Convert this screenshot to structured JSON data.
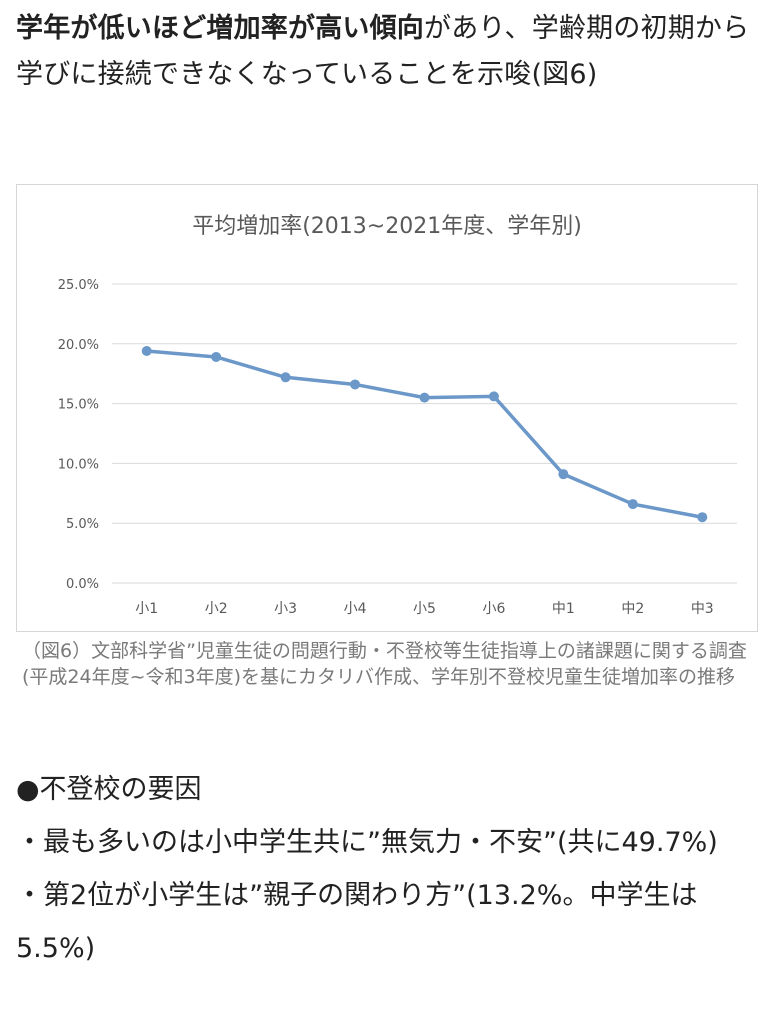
{
  "intro": {
    "bold": "学年が低いほど増加率が高い傾向",
    "rest": "があり、学齢期の初期から学びに接続できなくなっていることを示唆(図6)"
  },
  "chart_data": {
    "type": "line",
    "title": "平均増加率(2013~2021年度、学年別)",
    "categories": [
      "小1",
      "小2",
      "小3",
      "小4",
      "小5",
      "小6",
      "中1",
      "中2",
      "中3"
    ],
    "series": [
      {
        "values": [
          19.4,
          18.9,
          17.2,
          16.6,
          15.5,
          15.6,
          9.1,
          6.6,
          5.5
        ]
      }
    ],
    "ylim": [
      0,
      25
    ],
    "yticks": [
      "0.0%",
      "5.0%",
      "10.0%",
      "15.0%",
      "20.0%",
      "25.0%"
    ],
    "xlabel": "",
    "ylabel": "",
    "grid": true,
    "color": "#6b98c9"
  },
  "caption": "（図6）文部科学省”児童生徒の問題行動・不登校等生徒指導上の諸課題に関する調査(平成24年度~令和3年度)を基にカタリバ作成、学年別不登校児童生徒増加率の推移",
  "bottom": {
    "heading": "●不登校の要因",
    "item1": "・最も多いのは小中学生共に”無気力・不安”(共に49.7%)",
    "item2": "・第2位が小学生は”親子の関わり方”(13.2%。中学生は5.5%)"
  }
}
